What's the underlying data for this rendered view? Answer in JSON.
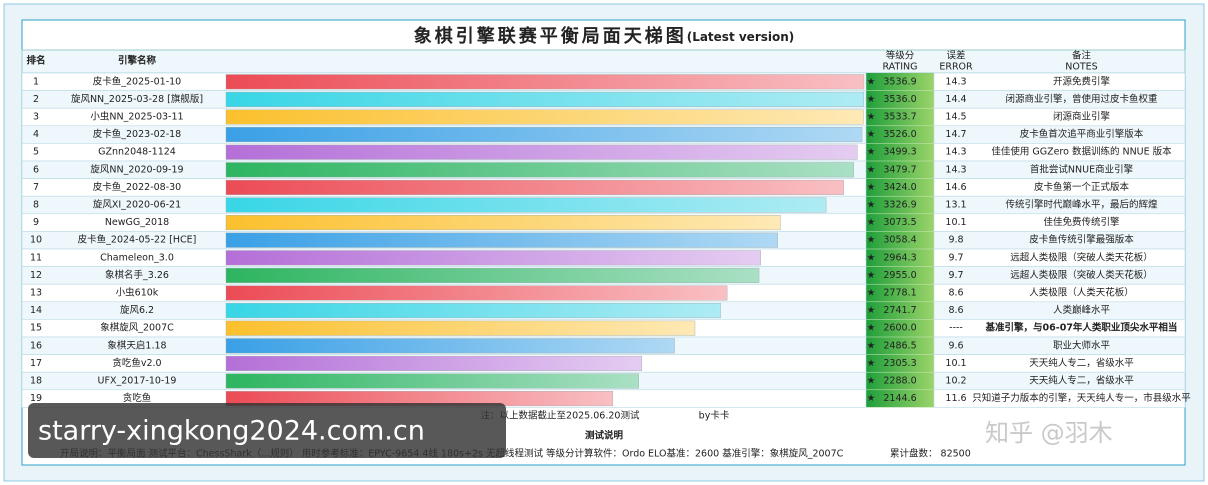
{
  "title": "象棋引擎联赛平衡局面天梯图",
  "title_suffix": "(Latest version)",
  "headers": {
    "rank": "排名",
    "name": "引擎名称",
    "rating": [
      "等级分",
      "RATING"
    ],
    "error": [
      "误差",
      "ERROR"
    ],
    "notes": [
      "备注",
      "NOTES"
    ]
  },
  "bar_colors": [
    "#ec4b55",
    "#38d6e6",
    "#fbc02d",
    "#3aa0e6",
    "#b46fd8",
    "#2db560"
  ],
  "highlight_row": 14,
  "highlight_color": "#d81e1e",
  "rows": [
    {
      "rank": "1",
      "name": "皮卡鱼_2025-01-10",
      "rating": 3536.9,
      "rating_label": "3536.9",
      "error": "14.3",
      "note": "开源免费引擎"
    },
    {
      "rank": "2",
      "name": "旋风NN_2025-03-28 [旗舰版]",
      "rating": 3536.0,
      "rating_label": "3536.0",
      "error": "14.4",
      "note": "闭源商业引擎，曾使用过皮卡鱼权重"
    },
    {
      "rank": "3",
      "name": "小虫NN_2025-03-11",
      "rating": 3533.7,
      "rating_label": "3533.7",
      "error": "14.5",
      "note": "闭源商业引擎"
    },
    {
      "rank": "4",
      "name": "皮卡鱼_2023-02-18",
      "rating": 3526.0,
      "rating_label": "3526.0",
      "error": "14.7",
      "note": "皮卡鱼首次追平商业引擎版本"
    },
    {
      "rank": "5",
      "name": "GZnn2048-1124",
      "rating": 3499.3,
      "rating_label": "3499.3",
      "error": "14.3",
      "note": "佳佳使用 GGZero 数据训练的 NNUE 版本"
    },
    {
      "rank": "6",
      "name": "旋风NN_2020-09-19",
      "rating": 3479.7,
      "rating_label": "3479.7",
      "error": "14.3",
      "note": "首批尝试NNUE商业引擎"
    },
    {
      "rank": "7",
      "name": "皮卡鱼_2022-08-30",
      "rating": 3424.0,
      "rating_label": "3424.0",
      "error": "14.6",
      "note": "皮卡鱼第一个正式版本"
    },
    {
      "rank": "8",
      "name": "旋风XI_2020-06-21",
      "rating": 3326.9,
      "rating_label": "3326.9",
      "error": "13.1",
      "note": "传统引擎时代巅峰水平，最后的辉煌"
    },
    {
      "rank": "9",
      "name": "NewGG_2018",
      "rating": 3073.5,
      "rating_label": "3073.5",
      "error": "10.1",
      "note": "佳佳免费传统引擎"
    },
    {
      "rank": "10",
      "name": "皮卡鱼_2024-05-22 [HCE]",
      "rating": 3058.4,
      "rating_label": "3058.4",
      "error": "9.8",
      "note": "皮卡鱼传统引擎最强版本"
    },
    {
      "rank": "11",
      "name": "Chameleon_3.0",
      "rating": 2964.3,
      "rating_label": "2964.3",
      "error": "9.7",
      "note": "远超人类极限（突破人类天花板）"
    },
    {
      "rank": "12",
      "name": "象棋名手_3.26",
      "rating": 2955.0,
      "rating_label": "2955.0",
      "error": "9.7",
      "note": "远超人类极限（突破人类天花板）"
    },
    {
      "rank": "13",
      "name": "小虫610k",
      "rating": 2778.1,
      "rating_label": "2778.1",
      "error": "8.6",
      "note": "人类极限（人类天花板）"
    },
    {
      "rank": "14",
      "name": "旋风6.2",
      "rating": 2741.7,
      "rating_label": "2741.7",
      "error": "8.6",
      "note": "人类巅峰水平"
    },
    {
      "rank": "15",
      "name": "象棋旋风_2007C",
      "rating": 2600.0,
      "rating_label": "2600.0",
      "error": "----",
      "note": "基准引擎，与06-07年人类职业顶尖水平相当"
    },
    {
      "rank": "16",
      "name": "象棋天启1.18",
      "rating": 2486.5,
      "rating_label": "2486.5",
      "error": "9.6",
      "note": "职业大师水平"
    },
    {
      "rank": "17",
      "name": "贪吃鱼v2.0",
      "rating": 2305.3,
      "rating_label": "2305.3",
      "error": "10.1",
      "note": "天天纯人专二，省级水平"
    },
    {
      "rank": "18",
      "name": "UFX_2017-10-19",
      "rating": 2288.0,
      "rating_label": "2288.0",
      "error": "10.2",
      "note": "天天纯人专二，省级水平"
    },
    {
      "rank": "19",
      "name": "贪吃鱼",
      "rating": 2144.6,
      "rating_label": "2144.6",
      "error": "11.6",
      "note": "只知道子力版本的引擎，天天纯人专一，市县级水平"
    }
  ],
  "footer": {
    "note": "注：以上数据截止至2025.06.20测试",
    "author": "by卡卡",
    "section": "测试说明",
    "details": "开局说明：平衡局面  测试平台：ChessShark（...规则）  用时参考标准：EPYC-9654 4线 180s+2s 无超线程测试   等级分计算软件：Ordo  ELO基准：2600 基准引擎：象棋旋风_2007C",
    "games": "累计盘数：  82500"
  },
  "watermarks": [
    "starry-xingkong2024.com.cn",
    "知乎 @羽木"
  ]
}
